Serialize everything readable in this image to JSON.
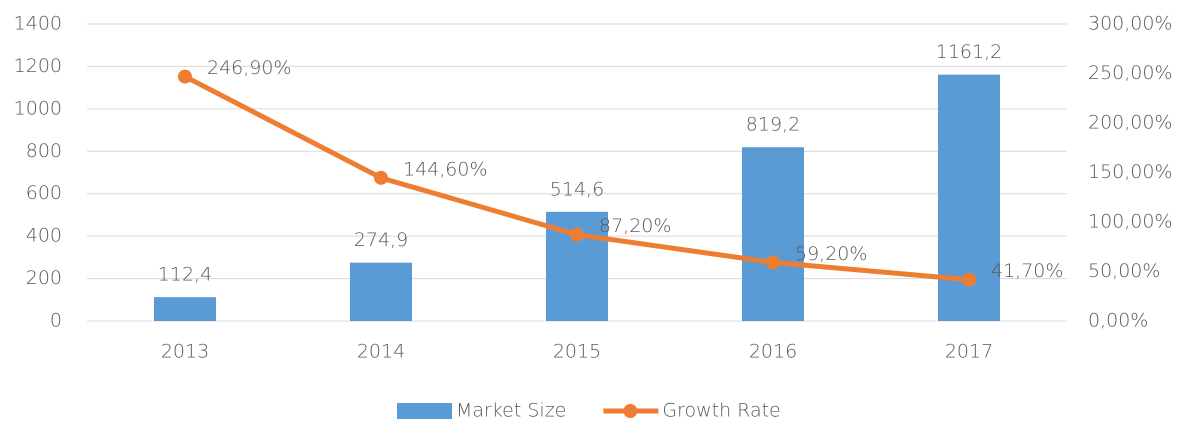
{
  "chart_data": {
    "type": "combo",
    "categories": [
      "2013",
      "2014",
      "2015",
      "2016",
      "2017"
    ],
    "series": [
      {
        "name": "Market Size",
        "type": "bar",
        "color": "#5b9bd5",
        "values": [
          112.4,
          274.9,
          514.6,
          819.2,
          1161.2
        ],
        "value_labels": [
          "112,4",
          "274,9",
          "514,6",
          "819,2",
          "1161,2"
        ]
      },
      {
        "name": "Growth Rate",
        "type": "line",
        "axis": "y2",
        "color": "#ed7d31",
        "values": [
          246.9,
          144.6,
          87.2,
          59.2,
          41.7
        ],
        "value_labels": [
          "246,90%",
          "144,60%",
          "87,20%",
          "59,20%",
          "41,70%"
        ]
      }
    ],
    "ylim": [
      0,
      1400
    ],
    "yticks": [
      0,
      200,
      400,
      600,
      800,
      1000,
      1200,
      1400
    ],
    "y2lim": [
      0,
      300
    ],
    "y2ticks": [
      {
        "value": 0,
        "label": "0,00%"
      },
      {
        "value": 50,
        "label": "50,00%"
      },
      {
        "value": 100,
        "label": "100,00%"
      },
      {
        "value": 150,
        "label": "150,00%"
      },
      {
        "value": 200,
        "label": "200,00%"
      },
      {
        "value": 250,
        "label": "250,00%"
      },
      {
        "value": 300,
        "label": "300,00%"
      }
    ],
    "grid": true,
    "legend": "bottom"
  }
}
